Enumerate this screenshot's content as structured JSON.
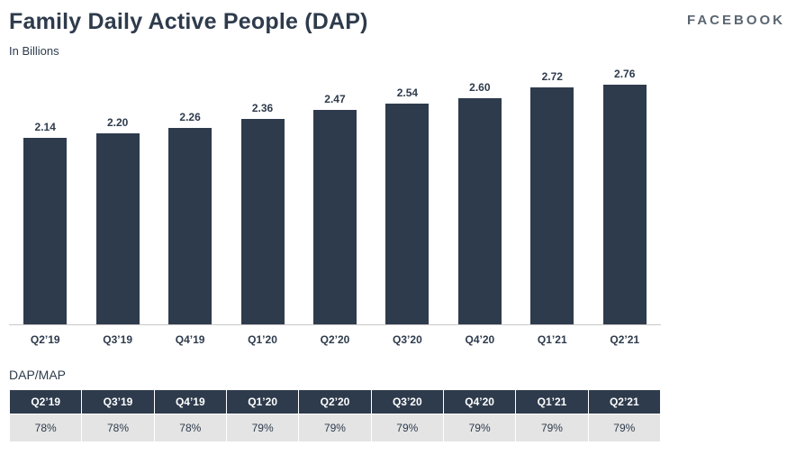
{
  "header": {
    "logo": "FACEBOOK"
  },
  "chart_data": [
    {
      "type": "bar",
      "title": "Family Daily Active People (DAP)",
      "ylabel": "In Billions",
      "xlabel": "",
      "categories": [
        "Q2’19",
        "Q3’19",
        "Q4’19",
        "Q1’20",
        "Q2’20",
        "Q3’20",
        "Q4’20",
        "Q1’21",
        "Q2’21"
      ],
      "values": [
        2.14,
        2.2,
        2.26,
        2.36,
        2.47,
        2.54,
        2.6,
        2.72,
        2.76
      ],
      "ylim": [
        0,
        2.9
      ],
      "bar_color": "#2e3b4c",
      "grid": false,
      "legend": "none",
      "value_labels_shown": true
    },
    {
      "type": "table",
      "title": "DAP/MAP",
      "columns": [
        "Q2’19",
        "Q3’19",
        "Q4’19",
        "Q1’20",
        "Q2’20",
        "Q3’20",
        "Q4’20",
        "Q1’21",
        "Q2’21"
      ],
      "rows": [
        [
          "78%",
          "78%",
          "78%",
          "79%",
          "79%",
          "79%",
          "79%",
          "79%",
          "79%"
        ]
      ],
      "header_bg": "#2e3b4c",
      "row_bg": "#e4e4e4"
    }
  ]
}
